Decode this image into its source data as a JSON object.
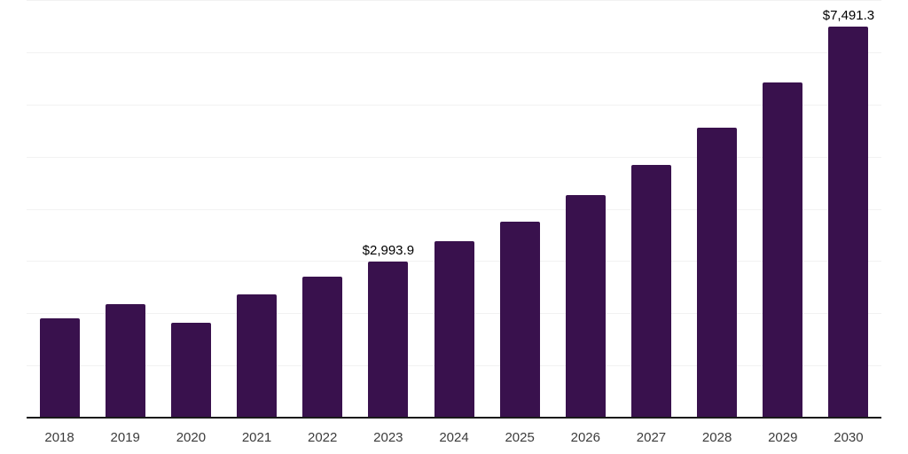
{
  "chart_data": {
    "type": "bar",
    "categories": [
      "2018",
      "2019",
      "2020",
      "2021",
      "2022",
      "2023",
      "2024",
      "2025",
      "2026",
      "2027",
      "2028",
      "2029",
      "2030"
    ],
    "values": [
      1900,
      2175,
      1815,
      2360,
      2700,
      2993.9,
      3375,
      3755,
      4260,
      4845,
      5560,
      6415,
      7491.3
    ],
    "data_labels": {
      "2023": "$2,993.9",
      "2030": "$7,491.3"
    },
    "title": "",
    "xlabel": "",
    "ylabel": "",
    "ylim": [
      0,
      8000
    ],
    "gridline_interval": 1000,
    "grid": true,
    "legend": false,
    "colors": {
      "bar": "#39114D",
      "axis_line": "#1A1A1A",
      "gridline": "#F2F2F2",
      "value_label": "#000000",
      "tick_label": "#3C3C3C",
      "background": "#FFFFFF"
    }
  }
}
